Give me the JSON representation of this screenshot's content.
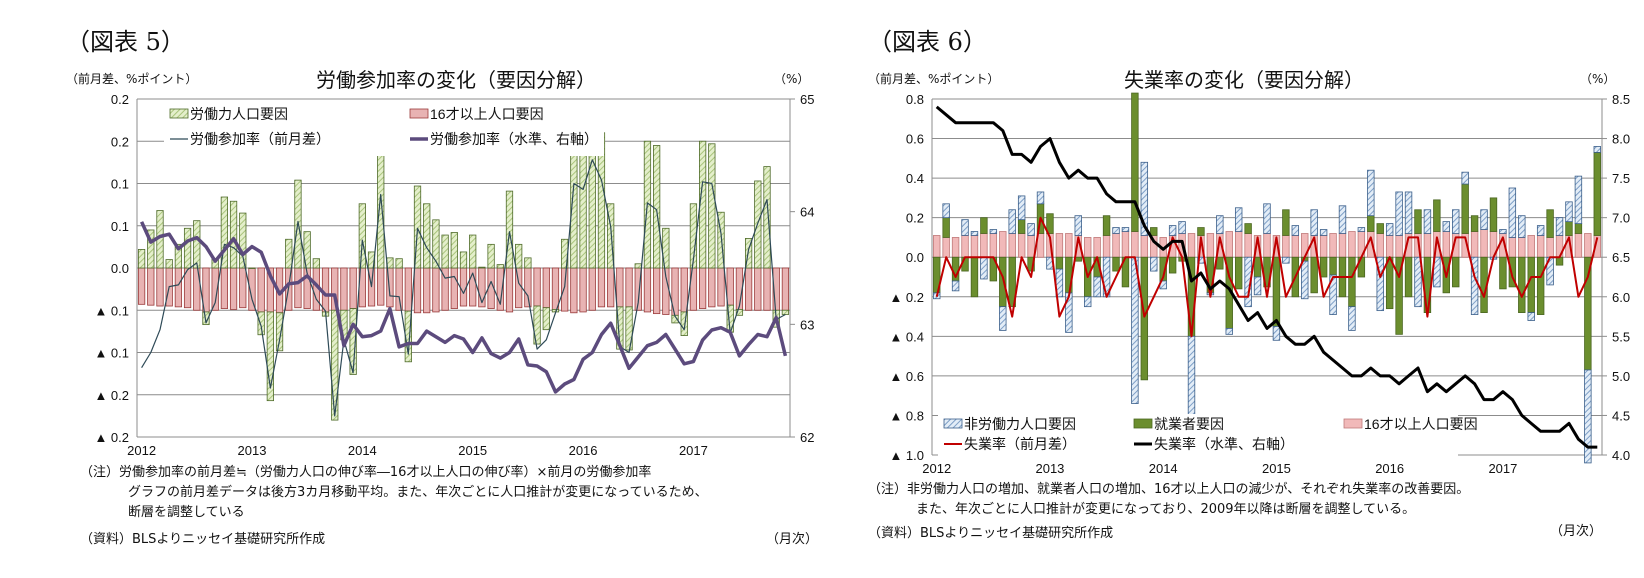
{
  "figure5": {
    "label": "（図表 5）",
    "title": "労働参加率の変化（要因分解）",
    "y_unit": "（前月差、%ポイント）",
    "y2_unit": "（%）",
    "x_unit": "（月次）",
    "notes": [
      "（注）労働参加率の前月差≒（労働力人口の伸び率―16才以上人口の伸び率）×前月の労働参加率",
      "グラフの前月差データは後方3カ月移動平均。また、年次ごとに人口推計が変更になっているため、",
      "断層を調整している"
    ],
    "source": "（資料）BLSよりニッセイ基礎研究所作成"
  },
  "figure6": {
    "label": "（図表 6）",
    "title": "失業率の変化（要因分解）",
    "y_unit": "（前月差、%ポイント）",
    "y2_unit": "（%）",
    "x_unit": "（月次）",
    "notes": [
      "（注）非労働力人口の増加、就業者人口の増加、16才以上人口の減少が、それぞれ失業率の改善要因。",
      "また、年次ごとに人口推計が変更になっており、2009年以降は断層を調整している。"
    ],
    "source": "（資料）BLSよりニッセイ基礎研究所作成"
  },
  "chart_data": [
    {
      "type": "bar",
      "title": "労働参加率の変化（要因分解）",
      "x_range": [
        "2012-01",
        "2017-11"
      ],
      "frequency": "monthly",
      "x_tick_labels": [
        "2012",
        "2013",
        "2014",
        "2015",
        "2016",
        "2017"
      ],
      "ylim": [
        -0.2,
        0.2
      ],
      "y_ticks": [
        0.2,
        0.15,
        0.1,
        0.05,
        0,
        -0.05,
        -0.1,
        -0.15,
        -0.2
      ],
      "y_tick_labels": [
        "0.2",
        "0.2",
        "0.1",
        "0.1",
        "0.0",
        "▲ 0.1",
        "▲ 0.1",
        "▲ 0.2",
        "▲ 0.2"
      ],
      "y2lim": [
        62,
        65
      ],
      "y2_ticks": [
        65,
        64,
        63,
        62
      ],
      "y2_tick_labels": [
        "65",
        "64",
        "63",
        "62"
      ],
      "grid": true,
      "legend_position": "top-left",
      "series": [
        {
          "name": "労働力人口要因",
          "kind": "bar",
          "color": "#d5e6ad",
          "edge": "#4f6b2a",
          "values": [
            0.022,
            0.045,
            0.068,
            0.01,
            0.028,
            0.047,
            0.056,
            -0.015,
            0.011,
            0.084,
            0.079,
            0.065,
            0.0,
            -0.027,
            -0.105,
            -0.045,
            0.034,
            0.104,
            0.043,
            0.011,
            -0.005,
            -0.13,
            -0.035,
            -0.078,
            0.076,
            0.019,
            0.15,
            0.012,
            0.011,
            -0.06,
            0.097,
            0.076,
            0.057,
            0.039,
            0.042,
            0.019,
            0.039,
            0.001,
            0.028,
            0.004,
            0.091,
            0.028,
            0.012,
            -0.045,
            -0.026,
            -0.003,
            0.034,
            0.14,
            0.16,
            0.16,
            0.16,
            0.076,
            -0.05,
            -0.051,
            0.005,
            0.15,
            0.145,
            0.047,
            -0.009,
            -0.028,
            0.076,
            0.15,
            0.147,
            0.066,
            -0.032,
            -0.007,
            0.035,
            0.103,
            0.12,
            -0.02,
            -0.005
          ]
        },
        {
          "name": "16才以上人口要因",
          "kind": "bar",
          "color": "#e8b3b3",
          "edge": "#9b3b3b",
          "values": [
            -0.043,
            -0.044,
            -0.045,
            -0.045,
            -0.046,
            -0.047,
            -0.05,
            -0.052,
            -0.05,
            -0.048,
            -0.049,
            -0.047,
            -0.05,
            -0.052,
            -0.052,
            -0.053,
            -0.05,
            -0.047,
            -0.048,
            -0.05,
            -0.052,
            -0.05,
            -0.05,
            -0.048,
            -0.046,
            -0.045,
            -0.044,
            -0.046,
            -0.05,
            -0.051,
            -0.053,
            -0.053,
            -0.052,
            -0.05,
            -0.048,
            -0.045,
            -0.045,
            -0.046,
            -0.048,
            -0.05,
            -0.052,
            -0.047,
            -0.046,
            -0.045,
            -0.047,
            -0.049,
            -0.051,
            -0.053,
            -0.052,
            -0.05,
            -0.046,
            -0.046,
            -0.046,
            -0.046,
            -0.05,
            -0.052,
            -0.054,
            -0.055,
            -0.056,
            -0.052,
            -0.05,
            -0.048,
            -0.046,
            -0.045,
            -0.044,
            -0.049,
            -0.05,
            -0.05,
            -0.05,
            -0.05,
            -0.05
          ]
        },
        {
          "name": "労働参加率（前月差）",
          "kind": "line",
          "color": "#2e4a57",
          "values": [
            -0.118,
            -0.1,
            -0.073,
            -0.022,
            -0.02,
            -0.002,
            0.006,
            -0.065,
            -0.041,
            0.028,
            0.024,
            0.014,
            -0.037,
            -0.069,
            -0.142,
            -0.085,
            -0.022,
            0.055,
            -0.006,
            -0.037,
            -0.051,
            -0.175,
            -0.085,
            -0.124,
            0.033,
            -0.022,
            0.087,
            -0.033,
            -0.034,
            -0.102,
            0.047,
            0.024,
            0.008,
            -0.012,
            -0.01,
            -0.03,
            -0.006,
            -0.041,
            -0.016,
            -0.043,
            0.043,
            -0.018,
            -0.033,
            -0.096,
            -0.085,
            -0.053,
            -0.022,
            0.1,
            0.093,
            0.128,
            0.104,
            0.049,
            -0.093,
            -0.1,
            -0.041,
            0.077,
            0.069,
            -0.01,
            -0.057,
            -0.073,
            0.01,
            0.102,
            0.1,
            0.041,
            -0.077,
            -0.045,
            0.022,
            0.053,
            0.081,
            -0.061,
            -0.055
          ]
        },
        {
          "name": "労働参加率（水準、右軸）",
          "kind": "line",
          "axis": "right",
          "color": "#5c4b7d",
          "values": [
            63.91,
            63.73,
            63.78,
            63.8,
            63.67,
            63.74,
            63.77,
            63.69,
            63.56,
            63.66,
            63.76,
            63.62,
            63.69,
            63.64,
            63.43,
            63.27,
            63.36,
            63.37,
            63.43,
            63.35,
            63.26,
            63.26,
            62.81,
            63.0,
            62.89,
            62.9,
            62.94,
            63.14,
            62.8,
            62.83,
            62.83,
            62.94,
            62.89,
            62.84,
            62.9,
            62.87,
            62.75,
            62.88,
            62.74,
            62.7,
            62.75,
            62.87,
            62.64,
            62.63,
            62.58,
            62.4,
            62.47,
            62.51,
            62.69,
            62.75,
            62.91,
            63.01,
            62.81,
            62.61,
            62.71,
            62.81,
            62.84,
            62.91,
            62.78,
            62.65,
            62.67,
            62.86,
            62.95,
            62.97,
            62.93,
            62.72,
            62.82,
            62.91,
            62.89,
            63.06,
            62.72
          ]
        }
      ]
    },
    {
      "type": "bar",
      "title": "失業率の変化（要因分解）",
      "x_range": [
        "2012-01",
        "2017-11"
      ],
      "frequency": "monthly",
      "x_tick_labels": [
        "2012",
        "2013",
        "2014",
        "2015",
        "2016",
        "2017"
      ],
      "ylim": [
        -1.0,
        0.8
      ],
      "y_ticks": [
        0.8,
        0.6,
        0.4,
        0.2,
        0,
        -0.2,
        -0.4,
        -0.6,
        -0.8,
        -1.0
      ],
      "y_tick_labels": [
        "0.8",
        "0.6",
        "0.4",
        "0.2",
        "0.0",
        "▲ 0.2",
        "▲ 0.4",
        "▲ 0.6",
        "▲ 0.8",
        "▲ 1.0"
      ],
      "y2lim": [
        4.0,
        8.5
      ],
      "y2_ticks": [
        8.5,
        8.0,
        7.5,
        7.0,
        6.5,
        6.0,
        5.5,
        5.0,
        4.5,
        4.0
      ],
      "y2_tick_labels": [
        "8.5",
        "8.0",
        "7.5",
        "7.0",
        "6.5",
        "6.0",
        "5.5",
        "5.0",
        "4.5",
        "4.0"
      ],
      "grid": true,
      "legend_position": "bottom-left",
      "series": [
        {
          "name": "非労働力人口要因",
          "kind": "bar",
          "color": "#c6d9ec",
          "edge": "#3b5f8a",
          "values": [
            -0.03,
            0.07,
            -0.05,
            0.08,
            0.02,
            -0.11,
            0.02,
            -0.12,
            0.12,
            0.12,
            0.06,
            0.06,
            -0.06,
            -0.14,
            -0.2,
            0.1,
            -0.05,
            -0.1,
            -0.2,
            0.03,
            0.02,
            -0.74,
            0.37,
            -0.07,
            -0.04,
            0.05,
            0.06,
            -0.45,
            -0.03,
            -0.01,
            0.09,
            -0.03,
            0.12,
            -0.25,
            -0.09,
            0.15,
            -0.07,
            -0.03,
            0.05,
            -0.19,
            0.13,
            0.03,
            -0.2,
            0.14,
            -0.12,
            0.02,
            0.23,
            -0.27,
            0.06,
            0.22,
            0.21,
            -0.25,
            0.12,
            -0.15,
            0.05,
            0.12,
            0.06,
            -0.29,
            0.1,
            -0.01,
            0.02,
            0.25,
            0.11,
            -0.04,
            0.05,
            -0.14,
            0.09,
            0.1,
            0.24,
            -0.47,
            0.03
          ]
        },
        {
          "name": "就業者要因",
          "kind": "bar",
          "color": "#6b8e2e",
          "edge": "#4a6620",
          "values": [
            -0.18,
            0.1,
            -0.12,
            -0.07,
            -0.2,
            0.08,
            -0.12,
            -0.25,
            -0.25,
            0.07,
            -0.07,
            0.15,
            0.1,
            -0.06,
            -0.18,
            -0.02,
            -0.2,
            -0.1,
            0.1,
            -0.07,
            -0.15,
            0.7,
            -0.62,
            0.04,
            -0.12,
            -0.08,
            -0.02,
            -0.4,
            0.04,
            -0.18,
            -0.06,
            -0.36,
            -0.16,
            0.05,
            -0.1,
            -0.15,
            -0.35,
            0.13,
            -0.2,
            -0.02,
            -0.18,
            -0.1,
            -0.09,
            -0.2,
            -0.25,
            -0.1,
            0.08,
            0.05,
            -0.26,
            -0.39,
            -0.2,
            0.12,
            -0.28,
            0.16,
            -0.18,
            -0.15,
            0.25,
            0.08,
            -0.28,
            0.17,
            -0.16,
            -0.15,
            -0.28,
            -0.28,
            -0.29,
            0.14,
            -0.04,
            0.07,
            0.05,
            -0.57,
            0.42
          ]
        },
        {
          "name": "16才以上人口要因",
          "kind": "bar",
          "color": "#f1b9b9",
          "edge": "#c07a7a",
          "values": [
            0.11,
            0.1,
            0.1,
            0.11,
            0.11,
            0.12,
            0.12,
            0.13,
            0.12,
            0.12,
            0.11,
            0.12,
            0.12,
            0.12,
            0.12,
            0.11,
            0.1,
            0.1,
            0.11,
            0.12,
            0.13,
            0.13,
            0.11,
            0.11,
            0.1,
            0.11,
            0.12,
            0.12,
            0.11,
            0.12,
            0.12,
            0.13,
            0.13,
            0.12,
            0.11,
            0.12,
            0.11,
            0.11,
            0.11,
            0.12,
            0.11,
            0.11,
            0.12,
            0.12,
            0.13,
            0.13,
            0.13,
            0.12,
            0.11,
            0.11,
            0.12,
            0.12,
            0.12,
            0.13,
            0.13,
            0.12,
            0.12,
            0.13,
            0.14,
            0.13,
            0.12,
            0.1,
            0.1,
            0.11,
            0.11,
            0.1,
            0.11,
            0.11,
            0.12,
            0.12,
            0.11
          ]
        },
        {
          "name": "失業率（前月差）",
          "kind": "line",
          "color": "#c00000",
          "values": [
            -0.2,
            0,
            -0.1,
            0,
            0,
            0,
            0,
            -0.1,
            -0.3,
            0,
            -0.1,
            0.2,
            0.1,
            -0.3,
            -0.2,
            0.1,
            -0.1,
            0,
            -0.2,
            -0.1,
            0,
            0,
            -0.3,
            -0.2,
            -0.1,
            0.1,
            0,
            -0.4,
            0.1,
            -0.2,
            0.1,
            -0.1,
            -0.2,
            -0.2,
            0.1,
            -0.2,
            0.1,
            -0.2,
            -0.1,
            0,
            0.1,
            -0.2,
            -0.1,
            -0.1,
            -0.1,
            0,
            0.1,
            -0.1,
            0,
            -0.1,
            0.1,
            0.1,
            -0.3,
            0.1,
            -0.1,
            0.1,
            0.1,
            -0.1,
            -0.2,
            0,
            0.1,
            -0.1,
            -0.2,
            -0.1,
            -0.1,
            0,
            0,
            0.1,
            -0.2,
            -0.1,
            0.1
          ]
        },
        {
          "name": "失業率（水準、右軸）",
          "kind": "line",
          "axis": "right",
          "color": "#000000",
          "values": [
            8.4,
            8.3,
            8.2,
            8.2,
            8.2,
            8.2,
            8.2,
            8.1,
            7.8,
            7.8,
            7.7,
            7.9,
            8.0,
            7.7,
            7.5,
            7.6,
            7.5,
            7.5,
            7.3,
            7.2,
            7.2,
            7.2,
            6.9,
            6.7,
            6.6,
            6.7,
            6.7,
            6.2,
            6.3,
            6.1,
            6.2,
            6.1,
            5.9,
            5.7,
            5.8,
            5.6,
            5.7,
            5.5,
            5.4,
            5.4,
            5.5,
            5.3,
            5.2,
            5.1,
            5.0,
            5.0,
            5.1,
            5.0,
            5.0,
            4.9,
            5.0,
            5.1,
            4.8,
            4.9,
            4.8,
            4.9,
            5.0,
            4.9,
            4.7,
            4.7,
            4.8,
            4.7,
            4.5,
            4.4,
            4.3,
            4.3,
            4.3,
            4.4,
            4.2,
            4.1,
            4.1
          ]
        }
      ]
    }
  ]
}
